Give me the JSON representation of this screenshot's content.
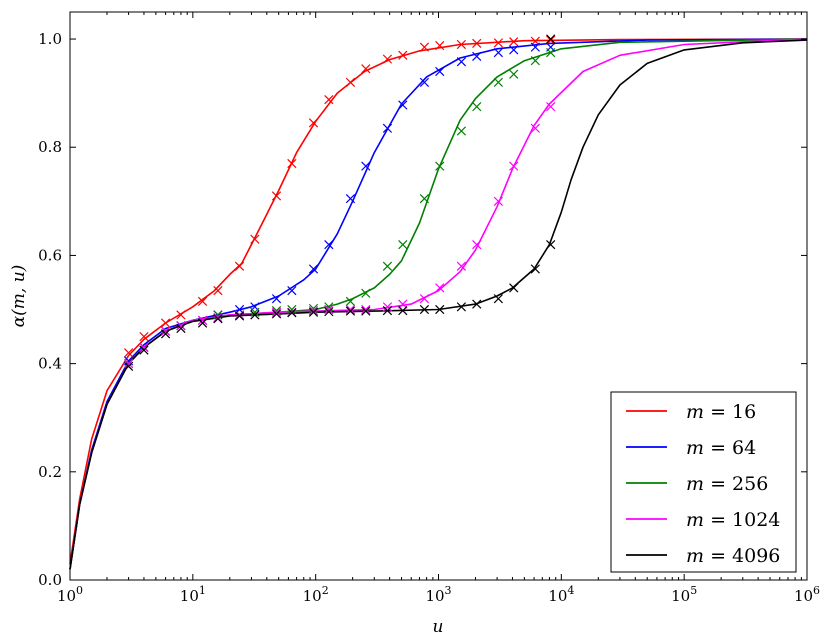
{
  "chart_data": {
    "type": "line",
    "title": "",
    "xlabel": "u",
    "ylabel": "α(m, u)",
    "xscale": "log",
    "xlim": [
      1,
      1000000
    ],
    "ylim": [
      0.0,
      1.05
    ],
    "xticks": [
      {
        "value": 1,
        "base": "10",
        "exp": "0"
      },
      {
        "value": 10,
        "base": "10",
        "exp": "1"
      },
      {
        "value": 100,
        "base": "10",
        "exp": "2"
      },
      {
        "value": 1000,
        "base": "10",
        "exp": "3"
      },
      {
        "value": 10000,
        "base": "10",
        "exp": "4"
      },
      {
        "value": 100000,
        "base": "10",
        "exp": "5"
      },
      {
        "value": 1000000,
        "base": "10",
        "exp": "6"
      }
    ],
    "yticks": [
      {
        "value": 0.0,
        "label": "0.0"
      },
      {
        "value": 0.2,
        "label": "0.2"
      },
      {
        "value": 0.4,
        "label": "0.4"
      },
      {
        "value": 0.6,
        "label": "0.6"
      },
      {
        "value": 0.8,
        "label": "0.8"
      },
      {
        "value": 1.0,
        "label": "1.0"
      }
    ],
    "grid": false,
    "legend_position": "bottom-right",
    "marker": "x",
    "series": [
      {
        "name": "m = 16",
        "m_label": "m",
        "value_label": "16",
        "color": "#ff0000",
        "line": [
          [
            1,
            0.03
          ],
          [
            1.2,
            0.15
          ],
          [
            1.5,
            0.26
          ],
          [
            2,
            0.35
          ],
          [
            3,
            0.415
          ],
          [
            4,
            0.445
          ],
          [
            6,
            0.475
          ],
          [
            10,
            0.505
          ],
          [
            15,
            0.535
          ],
          [
            20,
            0.565
          ],
          [
            25,
            0.585
          ],
          [
            35,
            0.65
          ],
          [
            50,
            0.72
          ],
          [
            70,
            0.79
          ],
          [
            100,
            0.848
          ],
          [
            150,
            0.9
          ],
          [
            250,
            0.94
          ],
          [
            400,
            0.962
          ],
          [
            700,
            0.978
          ],
          [
            1500,
            0.99
          ],
          [
            5000,
            0.997
          ],
          [
            30000,
            0.999
          ],
          [
            1000000,
            1.0
          ]
        ],
        "markers": [
          [
            3,
            0.42
          ],
          [
            4,
            0.45
          ],
          [
            6,
            0.475
          ],
          [
            8,
            0.49
          ],
          [
            12,
            0.515
          ],
          [
            16,
            0.535
          ],
          [
            24,
            0.58
          ],
          [
            32,
            0.63
          ],
          [
            48,
            0.71
          ],
          [
            64,
            0.77
          ],
          [
            96,
            0.845
          ],
          [
            128,
            0.888
          ],
          [
            192,
            0.92
          ],
          [
            256,
            0.945
          ],
          [
            384,
            0.963
          ],
          [
            512,
            0.97
          ],
          [
            768,
            0.985
          ],
          [
            1024,
            0.988
          ],
          [
            1536,
            0.99
          ],
          [
            2048,
            0.992
          ],
          [
            3072,
            0.993
          ],
          [
            4096,
            0.995
          ],
          [
            6144,
            0.996
          ],
          [
            8192,
            0.998
          ]
        ]
      },
      {
        "name": "m = 64",
        "m_label": "m",
        "value_label": "64",
        "color": "#0000ff",
        "line": [
          [
            1,
            0.02
          ],
          [
            1.2,
            0.14
          ],
          [
            1.5,
            0.24
          ],
          [
            2,
            0.33
          ],
          [
            3,
            0.405
          ],
          [
            4,
            0.435
          ],
          [
            6,
            0.465
          ],
          [
            10,
            0.48
          ],
          [
            20,
            0.495
          ],
          [
            30,
            0.505
          ],
          [
            50,
            0.525
          ],
          [
            80,
            0.555
          ],
          [
            100,
            0.575
          ],
          [
            150,
            0.64
          ],
          [
            200,
            0.7
          ],
          [
            300,
            0.79
          ],
          [
            500,
            0.88
          ],
          [
            800,
            0.93
          ],
          [
            1500,
            0.965
          ],
          [
            3000,
            0.982
          ],
          [
            8000,
            0.992
          ],
          [
            50000,
            0.998
          ],
          [
            1000000,
            1.0
          ]
        ],
        "markers": [
          [
            3,
            0.405
          ],
          [
            4,
            0.43
          ],
          [
            6,
            0.46
          ],
          [
            8,
            0.47
          ],
          [
            12,
            0.48
          ],
          [
            16,
            0.49
          ],
          [
            24,
            0.5
          ],
          [
            32,
            0.505
          ],
          [
            48,
            0.52
          ],
          [
            64,
            0.535
          ],
          [
            96,
            0.575
          ],
          [
            128,
            0.62
          ],
          [
            192,
            0.705
          ],
          [
            256,
            0.765
          ],
          [
            384,
            0.835
          ],
          [
            512,
            0.878
          ],
          [
            768,
            0.92
          ],
          [
            1024,
            0.94
          ],
          [
            1536,
            0.958
          ],
          [
            2048,
            0.968
          ],
          [
            3072,
            0.975
          ],
          [
            4096,
            0.98
          ],
          [
            6144,
            0.985
          ],
          [
            8192,
            0.985
          ]
        ]
      },
      {
        "name": "m = 256",
        "m_label": "m",
        "value_label": "256",
        "color": "#008000",
        "line": [
          [
            1,
            0.02
          ],
          [
            1.2,
            0.14
          ],
          [
            1.5,
            0.235
          ],
          [
            2,
            0.325
          ],
          [
            3,
            0.4
          ],
          [
            4,
            0.43
          ],
          [
            6,
            0.46
          ],
          [
            10,
            0.48
          ],
          [
            20,
            0.49
          ],
          [
            50,
            0.495
          ],
          [
            100,
            0.5
          ],
          [
            150,
            0.51
          ],
          [
            200,
            0.52
          ],
          [
            300,
            0.54
          ],
          [
            400,
            0.565
          ],
          [
            500,
            0.59
          ],
          [
            700,
            0.66
          ],
          [
            1000,
            0.76
          ],
          [
            1500,
            0.85
          ],
          [
            2000,
            0.89
          ],
          [
            3000,
            0.93
          ],
          [
            5000,
            0.96
          ],
          [
            10000,
            0.982
          ],
          [
            30000,
            0.994
          ],
          [
            1000000,
            1.0
          ]
        ],
        "markers": [
          [
            3,
            0.4
          ],
          [
            4,
            0.43
          ],
          [
            6,
            0.46
          ],
          [
            8,
            0.47
          ],
          [
            12,
            0.475
          ],
          [
            16,
            0.49
          ],
          [
            24,
            0.49
          ],
          [
            32,
            0.495
          ],
          [
            48,
            0.498
          ],
          [
            64,
            0.5
          ],
          [
            96,
            0.502
          ],
          [
            128,
            0.505
          ],
          [
            192,
            0.515
          ],
          [
            256,
            0.53
          ],
          [
            384,
            0.58
          ],
          [
            512,
            0.62
          ],
          [
            768,
            0.705
          ],
          [
            1024,
            0.765
          ],
          [
            1536,
            0.83
          ],
          [
            2048,
            0.875
          ],
          [
            3072,
            0.92
          ],
          [
            4096,
            0.935
          ],
          [
            6144,
            0.96
          ],
          [
            8192,
            0.975
          ]
        ]
      },
      {
        "name": "m = 1024",
        "m_label": "m",
        "value_label": "1024",
        "color": "#ff00ff",
        "line": [
          [
            1,
            0.02
          ],
          [
            1.2,
            0.14
          ],
          [
            1.5,
            0.235
          ],
          [
            2,
            0.325
          ],
          [
            3,
            0.4
          ],
          [
            4,
            0.43
          ],
          [
            6,
            0.46
          ],
          [
            10,
            0.48
          ],
          [
            20,
            0.49
          ],
          [
            50,
            0.495
          ],
          [
            100,
            0.497
          ],
          [
            300,
            0.5
          ],
          [
            600,
            0.51
          ],
          [
            1000,
            0.535
          ],
          [
            1500,
            0.57
          ],
          [
            2000,
            0.61
          ],
          [
            3000,
            0.69
          ],
          [
            4000,
            0.76
          ],
          [
            6000,
            0.84
          ],
          [
            8000,
            0.88
          ],
          [
            15000,
            0.94
          ],
          [
            30000,
            0.97
          ],
          [
            100000,
            0.99
          ],
          [
            1000000,
            1.0
          ]
        ],
        "markers": [
          [
            3,
            0.4
          ],
          [
            4,
            0.43
          ],
          [
            6,
            0.46
          ],
          [
            8,
            0.47
          ],
          [
            12,
            0.48
          ],
          [
            16,
            0.485
          ],
          [
            24,
            0.49
          ],
          [
            32,
            0.49
          ],
          [
            48,
            0.495
          ],
          [
            64,
            0.495
          ],
          [
            96,
            0.498
          ],
          [
            128,
            0.5
          ],
          [
            192,
            0.5
          ],
          [
            256,
            0.5
          ],
          [
            384,
            0.505
          ],
          [
            512,
            0.51
          ],
          [
            768,
            0.52
          ],
          [
            1024,
            0.54
          ],
          [
            1536,
            0.58
          ],
          [
            2048,
            0.62
          ],
          [
            3072,
            0.7
          ],
          [
            4096,
            0.765
          ],
          [
            6144,
            0.835
          ],
          [
            8192,
            0.875
          ]
        ]
      },
      {
        "name": "m = 4096",
        "m_label": "m",
        "value_label": "4096",
        "color": "#000000",
        "line": [
          [
            1,
            0.02
          ],
          [
            1.2,
            0.14
          ],
          [
            1.5,
            0.235
          ],
          [
            2,
            0.325
          ],
          [
            3,
            0.4
          ],
          [
            4,
            0.43
          ],
          [
            6,
            0.46
          ],
          [
            10,
            0.478
          ],
          [
            20,
            0.488
          ],
          [
            50,
            0.492
          ],
          [
            100,
            0.495
          ],
          [
            300,
            0.497
          ],
          [
            1000,
            0.5
          ],
          [
            2000,
            0.51
          ],
          [
            3000,
            0.525
          ],
          [
            4000,
            0.54
          ],
          [
            6000,
            0.575
          ],
          [
            8000,
            0.62
          ],
          [
            10000,
            0.68
          ],
          [
            12000,
            0.74
          ],
          [
            15000,
            0.8
          ],
          [
            20000,
            0.86
          ],
          [
            30000,
            0.915
          ],
          [
            50000,
            0.955
          ],
          [
            100000,
            0.98
          ],
          [
            300000,
            0.993
          ],
          [
            1000000,
            0.998
          ]
        ],
        "markers": [
          [
            3,
            0.395
          ],
          [
            4,
            0.425
          ],
          [
            6,
            0.455
          ],
          [
            8,
            0.465
          ],
          [
            12,
            0.475
          ],
          [
            16,
            0.483
          ],
          [
            24,
            0.488
          ],
          [
            32,
            0.49
          ],
          [
            48,
            0.492
          ],
          [
            64,
            0.494
          ],
          [
            96,
            0.495
          ],
          [
            128,
            0.496
          ],
          [
            192,
            0.497
          ],
          [
            256,
            0.497
          ],
          [
            384,
            0.498
          ],
          [
            512,
            0.498
          ],
          [
            768,
            0.5
          ],
          [
            1024,
            0.5
          ],
          [
            1536,
            0.505
          ],
          [
            2048,
            0.51
          ],
          [
            3072,
            0.52
          ],
          [
            4096,
            0.54
          ],
          [
            6144,
            0.575
          ],
          [
            8192,
            0.62
          ],
          [
            8192,
            1.0
          ]
        ]
      }
    ]
  }
}
